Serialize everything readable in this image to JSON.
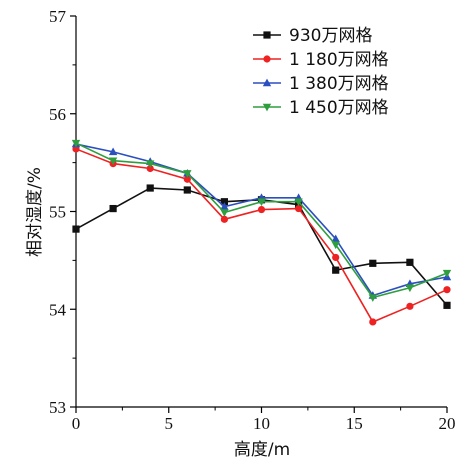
{
  "chart_data": {
    "type": "line",
    "xlabel": "高度/m",
    "ylabel": "相对湿度/%",
    "xlim": [
      0,
      20
    ],
    "ylim": [
      53,
      57
    ],
    "xticks": [
      0,
      5,
      10,
      15,
      20
    ],
    "yticks": [
      53,
      54,
      55,
      56,
      57
    ],
    "grid": false,
    "legend_position": "top-right",
    "series": [
      {
        "name": "930万网格",
        "color": "#111111",
        "marker": "square",
        "x": [
          0,
          2,
          4,
          6,
          8,
          10,
          12,
          14,
          16,
          18,
          20
        ],
        "y": [
          54.82,
          55.03,
          55.24,
          55.22,
          55.1,
          55.12,
          55.07,
          54.4,
          54.47,
          54.48,
          54.04
        ]
      },
      {
        "name": "1 180万网格",
        "color": "#ee2222",
        "marker": "circle",
        "x": [
          0,
          2,
          4,
          6,
          8,
          10,
          12,
          14,
          16,
          18,
          20
        ],
        "y": [
          55.64,
          55.49,
          55.44,
          55.33,
          54.92,
          55.02,
          55.03,
          54.53,
          53.87,
          54.03,
          54.2
        ]
      },
      {
        "name": "1 380万网格",
        "color": "#2b4fbf",
        "marker": "triangle-up",
        "x": [
          0,
          2,
          4,
          6,
          8,
          10,
          12,
          14,
          16,
          18,
          20
        ],
        "y": [
          55.69,
          55.61,
          55.51,
          55.39,
          55.05,
          55.14,
          55.14,
          54.72,
          54.14,
          54.26,
          54.33
        ]
      },
      {
        "name": "1 450万网格",
        "color": "#2e9e3e",
        "marker": "triangle-down",
        "x": [
          0,
          2,
          4,
          6,
          8,
          10,
          12,
          14,
          16,
          18,
          20
        ],
        "y": [
          55.7,
          55.52,
          55.49,
          55.39,
          54.99,
          55.1,
          55.1,
          54.66,
          54.12,
          54.22,
          54.37
        ]
      }
    ]
  }
}
